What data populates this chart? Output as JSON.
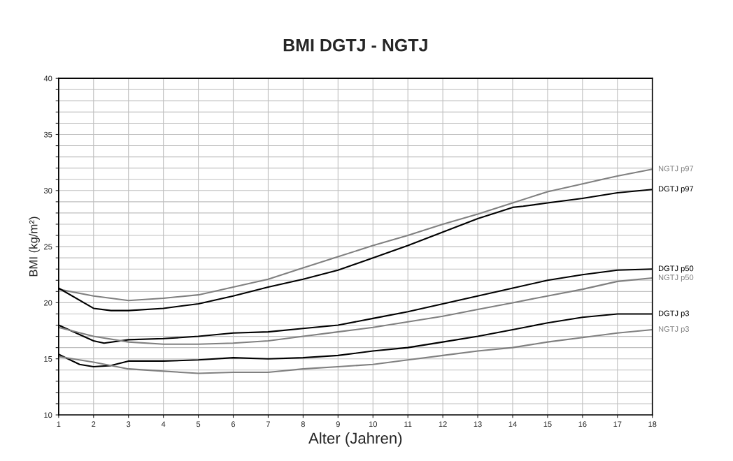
{
  "chart_data": {
    "type": "line",
    "title": "BMI DGTJ - NGTJ",
    "xlabel": "Alter (Jahren)",
    "ylabel": "BMI (kg/m²)",
    "xlim": [
      1,
      18
    ],
    "xticks": [
      1,
      2,
      3,
      4,
      5,
      6,
      7,
      8,
      9,
      10,
      11,
      12,
      13,
      14,
      15,
      16,
      17,
      18
    ],
    "ylim": [
      10,
      40
    ],
    "yticks": [
      10,
      {
        "value": 11,
        "label": null
      },
      {
        "value": 12,
        "label": null
      },
      {
        "value": 13,
        "label": null
      },
      {
        "value": 14,
        "label": null
      },
      15,
      {
        "value": 16,
        "label": null
      },
      {
        "value": 17,
        "label": null
      },
      {
        "value": 18,
        "label": null
      },
      {
        "value": 19,
        "label": null
      },
      20,
      {
        "value": 21,
        "label": null
      },
      {
        "value": 22,
        "label": null
      },
      {
        "value": 23,
        "label": null
      },
      {
        "value": 24,
        "label": null
      },
      25,
      {
        "value": 26,
        "label": null
      },
      {
        "value": 27,
        "label": null
      },
      {
        "value": 28,
        "label": null
      },
      {
        "value": 29,
        "label": null
      },
      30,
      {
        "value": 31,
        "label": null
      },
      {
        "value": 32,
        "label": null
      },
      {
        "value": 33,
        "label": null
      },
      {
        "value": 34,
        "label": null
      },
      35,
      {
        "value": 36,
        "label": null
      },
      {
        "value": 37,
        "label": null
      },
      {
        "value": 38,
        "label": null
      },
      {
        "value": 39,
        "label": null
      },
      40
    ],
    "grid": true,
    "legend": false,
    "marker": "none",
    "line_style": "solid",
    "series": [
      {
        "name": "NGTJ p97",
        "color": "#808080",
        "x": [
          1,
          2,
          3,
          4,
          5,
          6,
          7,
          8,
          9,
          10,
          11,
          12,
          13,
          14,
          15,
          16,
          17,
          18
        ],
        "values": [
          21.2,
          20.6,
          20.2,
          20.4,
          20.7,
          21.4,
          22.1,
          23.1,
          24.1,
          25.1,
          26.0,
          27.0,
          27.9,
          28.9,
          29.9,
          30.6,
          31.3,
          31.9
        ]
      },
      {
        "name": "DGTJ p97",
        "color": "#000000",
        "x": [
          1,
          2,
          2.5,
          3,
          4,
          5,
          6,
          7,
          8,
          9,
          10,
          11,
          12,
          13,
          14,
          14.3,
          15,
          16,
          17,
          18
        ],
        "values": [
          21.3,
          19.5,
          19.3,
          19.3,
          19.5,
          19.9,
          20.6,
          21.4,
          22.1,
          22.9,
          24.0,
          25.1,
          26.3,
          27.5,
          28.5,
          28.6,
          28.9,
          29.3,
          29.8,
          30.1
        ]
      },
      {
        "name": "DGTJ p50",
        "color": "#000000",
        "x": [
          1,
          2,
          2.3,
          3,
          4,
          5,
          6,
          7,
          8,
          9,
          10,
          11,
          12,
          13,
          14,
          15,
          16,
          17,
          18
        ],
        "values": [
          18.0,
          16.6,
          16.4,
          16.7,
          16.8,
          17.0,
          17.3,
          17.4,
          17.7,
          18.0,
          18.6,
          19.2,
          19.9,
          20.6,
          21.3,
          22.0,
          22.5,
          22.9,
          23.0
        ]
      },
      {
        "name": "NGTJ p50",
        "color": "#808080",
        "x": [
          1,
          2,
          3,
          4,
          5,
          6,
          7,
          8,
          9,
          10,
          11,
          12,
          13,
          14,
          15,
          16,
          17,
          18
        ],
        "values": [
          17.8,
          17.0,
          16.5,
          16.3,
          16.3,
          16.4,
          16.6,
          17.0,
          17.4,
          17.8,
          18.3,
          18.8,
          19.4,
          20.0,
          20.6,
          21.2,
          21.9,
          22.2
        ]
      },
      {
        "name": "DGTJ p3",
        "color": "#000000",
        "x": [
          1,
          1.6,
          2,
          2.5,
          3,
          4,
          5,
          6,
          7,
          8,
          9,
          10,
          11,
          12,
          13,
          14,
          15,
          16,
          17,
          18
        ],
        "values": [
          15.4,
          14.5,
          14.3,
          14.4,
          14.8,
          14.8,
          14.9,
          15.1,
          15.0,
          15.1,
          15.3,
          15.7,
          16.0,
          16.5,
          17.0,
          17.6,
          18.2,
          18.7,
          19.0,
          19.0
        ]
      },
      {
        "name": "NGTJ p3",
        "color": "#808080",
        "x": [
          1,
          2,
          3,
          4,
          5,
          6,
          7,
          8,
          9,
          10,
          11,
          12,
          13,
          14,
          15,
          16,
          17,
          18
        ],
        "values": [
          15.2,
          14.7,
          14.1,
          13.9,
          13.7,
          13.8,
          13.8,
          14.1,
          14.3,
          14.5,
          14.9,
          15.3,
          15.7,
          16.0,
          16.5,
          16.9,
          17.3,
          17.6
        ]
      }
    ]
  }
}
